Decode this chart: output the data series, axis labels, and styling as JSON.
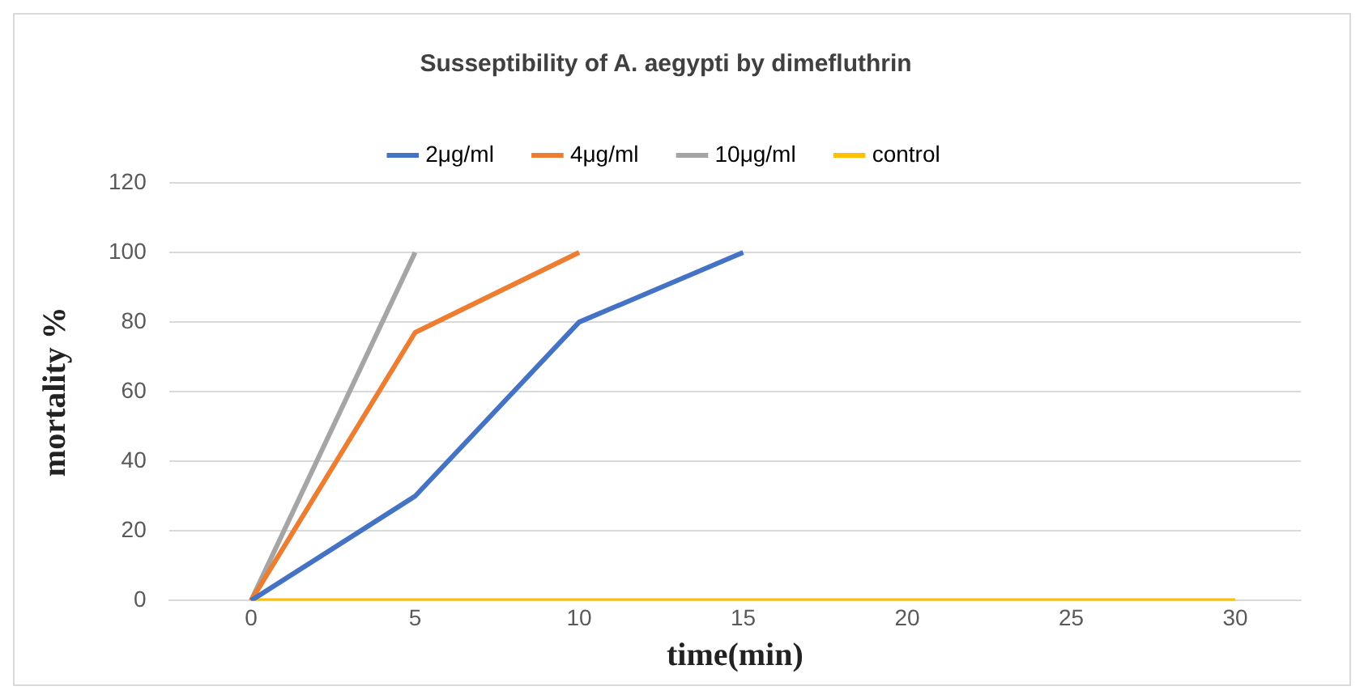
{
  "chart_data": {
    "type": "line",
    "title": "Susseptibility of A. aegypti by dimefluthrin",
    "xlabel": "time(min)",
    "ylabel": "mortality %",
    "x": [
      0,
      5,
      10,
      15,
      20,
      25,
      30
    ],
    "series": [
      {
        "name": "2μg/ml",
        "color": "#4472c4",
        "values": [
          0,
          30,
          80,
          100,
          null,
          null,
          null
        ]
      },
      {
        "name": "4μg/ml",
        "color": "#ed7d31",
        "values": [
          0,
          77,
          100,
          null,
          null,
          null,
          null
        ]
      },
      {
        "name": "10μg/ml",
        "color": "#a5a5a5",
        "values": [
          0,
          100,
          null,
          null,
          null,
          null,
          null
        ]
      },
      {
        "name": "control",
        "color": "#ffc000",
        "values": [
          0,
          0,
          0,
          0,
          0,
          0,
          0
        ]
      }
    ],
    "xlim": [
      -2.5,
      32
    ],
    "xticks": [
      0,
      5,
      10,
      15,
      20,
      25,
      30
    ],
    "ylim": [
      0,
      120
    ],
    "yticks": [
      0,
      20,
      40,
      60,
      80,
      100,
      120
    ],
    "grid": "y",
    "legend": "top",
    "marker": "none",
    "line_style": "solid"
  }
}
